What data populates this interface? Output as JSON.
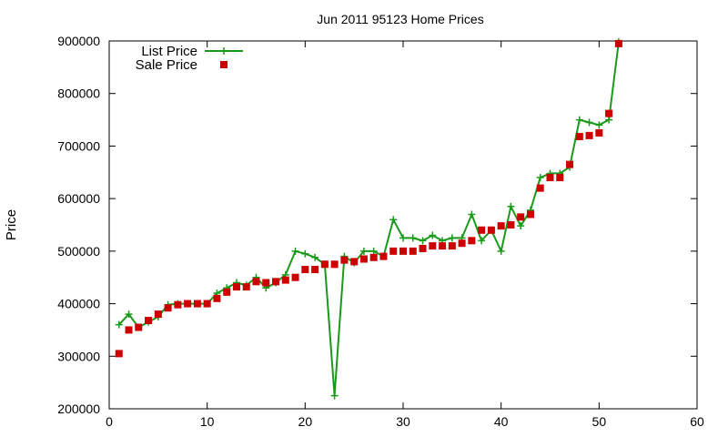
{
  "chart_data": {
    "type": "line",
    "title": "Jun 2011 95123 Home Prices",
    "xlabel": "",
    "ylabel": "Price",
    "xlim": [
      0,
      60
    ],
    "ylim": [
      200000,
      900000
    ],
    "xticks": [
      "0",
      "10",
      "20",
      "30",
      "40",
      "50",
      "60"
    ],
    "yticks": [
      "200000",
      "300000",
      "400000",
      "500000",
      "600000",
      "700000",
      "800000",
      "900000"
    ],
    "grid": false,
    "legend_position": "top-left",
    "series": [
      {
        "name": "List Price",
        "style": "line-with-plus-markers",
        "color": "#1a9a1a",
        "x": [
          1,
          2,
          3,
          4,
          5,
          6,
          7,
          8,
          9,
          10,
          11,
          12,
          13,
          14,
          15,
          16,
          17,
          18,
          19,
          20,
          21,
          22,
          23,
          24,
          25,
          26,
          27,
          28,
          29,
          30,
          31,
          32,
          33,
          34,
          35,
          36,
          37,
          38,
          39,
          40,
          41,
          42,
          43,
          44,
          45,
          46,
          47,
          48,
          49,
          50,
          51,
          52
        ],
        "values": [
          360000,
          380000,
          355000,
          365000,
          375000,
          398000,
          400000,
          400000,
          400000,
          400000,
          420000,
          430000,
          440000,
          435000,
          450000,
          430000,
          440000,
          455000,
          500000,
          495000,
          488000,
          475000,
          225000,
          490000,
          478000,
          500000,
          500000,
          490000,
          560000,
          525000,
          525000,
          520000,
          530000,
          520000,
          525000,
          525000,
          570000,
          520000,
          540000,
          500000,
          585000,
          548000,
          578000,
          640000,
          648000,
          648000,
          660000,
          750000,
          745000,
          740000,
          750000,
          898000
        ]
      },
      {
        "name": "Sale Price",
        "style": "square-markers",
        "color": "#cc0000",
        "x": [
          1,
          2,
          3,
          4,
          5,
          6,
          7,
          8,
          9,
          10,
          11,
          12,
          13,
          14,
          15,
          16,
          17,
          18,
          19,
          20,
          21,
          22,
          23,
          24,
          25,
          26,
          27,
          28,
          29,
          30,
          31,
          32,
          33,
          34,
          35,
          36,
          37,
          38,
          39,
          40,
          41,
          42,
          43,
          44,
          45,
          46,
          47,
          48,
          49,
          50,
          51,
          52
        ],
        "values": [
          305000,
          350000,
          355000,
          368000,
          380000,
          392000,
          398000,
          400000,
          400000,
          400000,
          410000,
          422000,
          432000,
          432000,
          442000,
          440000,
          442000,
          445000,
          450000,
          465000,
          465000,
          475000,
          475000,
          483000,
          480000,
          485000,
          488000,
          490000,
          500000,
          500000,
          500000,
          505000,
          510000,
          510000,
          510000,
          515000,
          520000,
          540000,
          540000,
          548000,
          550000,
          565000,
          570000,
          620000,
          640000,
          640000,
          665000,
          718000,
          720000,
          725000,
          762000,
          895000
        ]
      }
    ]
  }
}
